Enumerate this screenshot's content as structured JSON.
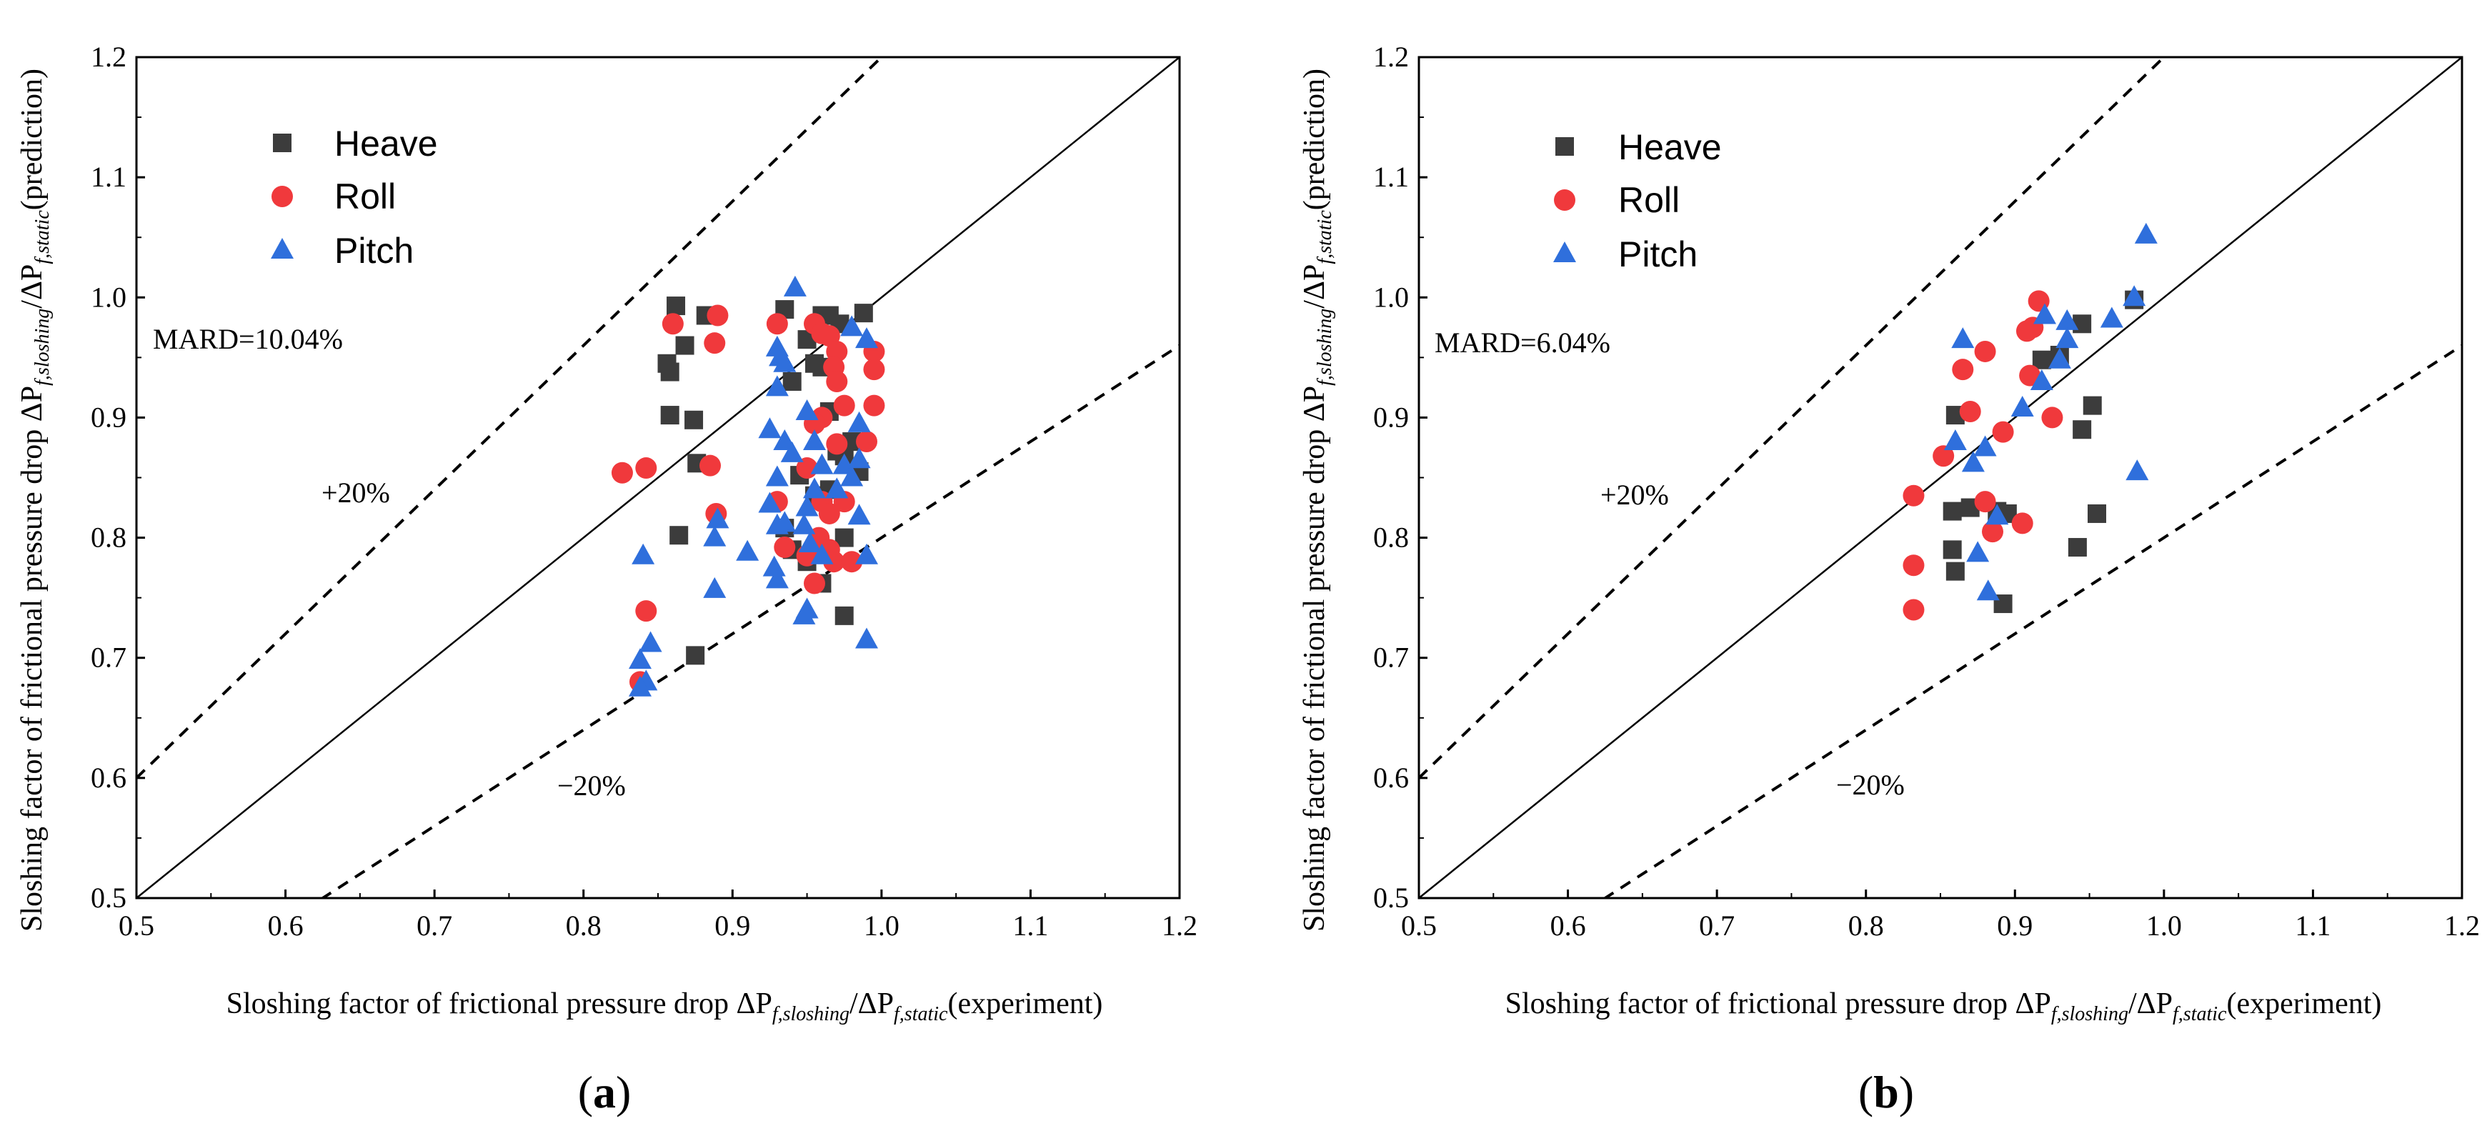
{
  "chart_data": [
    {
      "type": "scatter",
      "panel_label_open": "(",
      "panel_label_letter": "a",
      "panel_label_close": ")",
      "xlabel_main": "Sloshing factor of frictional pressure drop ΔP",
      "xlabel_sub1": "f,sloshing",
      "xlabel_mid": "/ΔP",
      "xlabel_sub2": "f,static",
      "xlabel_end": "(experiment)",
      "ylabel_main": "Sloshing factor of frictional pressure drop ΔP",
      "ylabel_sub1": "f,sloshing",
      "ylabel_mid": "/ΔP",
      "ylabel_sub2": "f,static",
      "ylabel_end": "(prediction)",
      "xlim": [
        0.5,
        1.2
      ],
      "ylim": [
        0.5,
        1.2
      ],
      "xticks": [
        "0.5",
        "0.6",
        "0.7",
        "0.8",
        "0.9",
        "1.0",
        "1.1",
        "1.2"
      ],
      "yticks": [
        "0.5",
        "0.6",
        "0.7",
        "0.8",
        "0.9",
        "1.0",
        "1.1",
        "1.2"
      ],
      "grid": false,
      "legend_position": "top-left",
      "annotations": {
        "mard": "MARD=10.04%",
        "plus": "+20%",
        "minus": "−20%"
      },
      "reference_lines": {
        "parity": 1.0,
        "upper": 1.2,
        "lower": 0.8
      },
      "series": [
        {
          "name": "Heave",
          "marker": "square",
          "color": "#3c3c3c",
          "points": [
            [
              0.862,
              0.993
            ],
            [
              0.882,
              0.985
            ],
            [
              0.868,
              0.96
            ],
            [
              0.856,
              0.945
            ],
            [
              0.858,
              0.938
            ],
            [
              0.858,
              0.902
            ],
            [
              0.874,
              0.898
            ],
            [
              0.876,
              0.862
            ],
            [
              0.864,
              0.802
            ],
            [
              0.875,
              0.702
            ],
            [
              0.935,
              0.99
            ],
            [
              0.96,
              0.985
            ],
            [
              0.965,
              0.985
            ],
            [
              0.972,
              0.978
            ],
            [
              0.988,
              0.987
            ],
            [
              0.95,
              0.965
            ],
            [
              0.955,
              0.945
            ],
            [
              0.96,
              0.942
            ],
            [
              0.94,
              0.93
            ],
            [
              0.965,
              0.905
            ],
            [
              0.97,
              0.872
            ],
            [
              0.975,
              0.868
            ],
            [
              0.945,
              0.852
            ],
            [
              0.955,
              0.835
            ],
            [
              0.965,
              0.84
            ],
            [
              0.975,
              0.8
            ],
            [
              0.935,
              0.808
            ],
            [
              0.94,
              0.79
            ],
            [
              0.96,
              0.762
            ],
            [
              0.975,
              0.735
            ],
            [
              0.95,
              0.78
            ],
            [
              0.985,
              0.855
            ],
            [
              0.98,
              0.88
            ]
          ]
        },
        {
          "name": "Roll",
          "marker": "circle",
          "color": "#f0393c",
          "points": [
            [
              0.826,
              0.854
            ],
            [
              0.842,
              0.858
            ],
            [
              0.86,
              0.978
            ],
            [
              0.89,
              0.985
            ],
            [
              0.888,
              0.962
            ],
            [
              0.885,
              0.86
            ],
            [
              0.889,
              0.82
            ],
            [
              0.842,
              0.739
            ],
            [
              0.838,
              0.68
            ],
            [
              0.93,
              0.978
            ],
            [
              0.955,
              0.978
            ],
            [
              0.96,
              0.97
            ],
            [
              0.965,
              0.968
            ],
            [
              0.97,
              0.955
            ],
            [
              0.995,
              0.955
            ],
            [
              0.968,
              0.942
            ],
            [
              0.97,
              0.93
            ],
            [
              0.96,
              0.9
            ],
            [
              0.995,
              0.94
            ],
            [
              0.975,
              0.91
            ],
            [
              0.995,
              0.91
            ],
            [
              0.99,
              0.88
            ],
            [
              0.955,
              0.895
            ],
            [
              0.95,
              0.858
            ],
            [
              0.97,
              0.878
            ],
            [
              0.96,
              0.83
            ],
            [
              0.965,
              0.82
            ],
            [
              0.975,
              0.83
            ],
            [
              0.93,
              0.83
            ],
            [
              0.935,
              0.792
            ],
            [
              0.958,
              0.8
            ],
            [
              0.965,
              0.79
            ],
            [
              0.968,
              0.78
            ],
            [
              0.98,
              0.78
            ],
            [
              0.955,
              0.762
            ],
            [
              0.95,
              0.785
            ]
          ]
        },
        {
          "name": "Pitch",
          "marker": "triangle",
          "color": "#2f6fdc",
          "points": [
            [
              0.84,
              0.785
            ],
            [
              0.845,
              0.712
            ],
            [
              0.838,
              0.698
            ],
            [
              0.842,
              0.68
            ],
            [
              0.838,
              0.675
            ],
            [
              0.89,
              0.815
            ],
            [
              0.888,
              0.8
            ],
            [
              0.888,
              0.757
            ],
            [
              0.91,
              0.788
            ],
            [
              0.942,
              1.008
            ],
            [
              0.93,
              0.958
            ],
            [
              0.932,
              0.95
            ],
            [
              0.935,
              0.945
            ],
            [
              0.93,
              0.925
            ],
            [
              0.925,
              0.89
            ],
            [
              0.935,
              0.88
            ],
            [
              0.93,
              0.85
            ],
            [
              0.925,
              0.828
            ],
            [
              0.93,
              0.81
            ],
            [
              0.935,
              0.812
            ],
            [
              0.928,
              0.775
            ],
            [
              0.93,
              0.765
            ],
            [
              0.95,
              0.905
            ],
            [
              0.955,
              0.88
            ],
            [
              0.96,
              0.86
            ],
            [
              0.955,
              0.84
            ],
            [
              0.95,
              0.825
            ],
            [
              0.948,
              0.81
            ],
            [
              0.952,
              0.795
            ],
            [
              0.96,
              0.785
            ],
            [
              0.95,
              0.74
            ],
            [
              0.948,
              0.735
            ],
            [
              0.98,
              0.975
            ],
            [
              0.99,
              0.965
            ],
            [
              0.985,
              0.895
            ],
            [
              0.975,
              0.86
            ],
            [
              0.985,
              0.865
            ],
            [
              0.98,
              0.85
            ],
            [
              0.985,
              0.818
            ],
            [
              0.99,
              0.785
            ],
            [
              0.99,
              0.715
            ],
            [
              0.97,
              0.84
            ],
            [
              0.94,
              0.87
            ]
          ]
        }
      ]
    },
    {
      "type": "scatter",
      "panel_label_open": "(",
      "panel_label_letter": "b",
      "panel_label_close": ")",
      "xlabel_main": "Sloshing factor of frictional pressure drop ΔP",
      "xlabel_sub1": "f,sloshing",
      "xlabel_mid": "/ΔP",
      "xlabel_sub2": "f,static",
      "xlabel_end": "(experiment)",
      "ylabel_main": "Sloshing factor of frictional pressure drop ΔP",
      "ylabel_sub1": "f,sloshing",
      "ylabel_mid": "/ΔP",
      "ylabel_sub2": "f,static",
      "ylabel_end": "(prediction)",
      "xlim": [
        0.5,
        1.2
      ],
      "ylim": [
        0.5,
        1.2
      ],
      "xticks": [
        "0.5",
        "0.6",
        "0.7",
        "0.8",
        "0.9",
        "1.0",
        "1.1",
        "1.2"
      ],
      "yticks": [
        "0.5",
        "0.6",
        "0.7",
        "0.8",
        "0.9",
        "1.0",
        "1.1",
        "1.2"
      ],
      "grid": false,
      "legend_position": "top-left",
      "annotations": {
        "mard": "MARD=6.04%",
        "plus": "+20%",
        "minus": "−20%"
      },
      "reference_lines": {
        "parity": 1.0,
        "upper": 1.2,
        "lower": 0.8
      },
      "series": [
        {
          "name": "Heave",
          "marker": "square",
          "color": "#3c3c3c",
          "points": [
            [
              0.98,
              0.998
            ],
            [
              0.945,
              0.978
            ],
            [
              0.918,
              0.948
            ],
            [
              0.93,
              0.952
            ],
            [
              0.86,
              0.902
            ],
            [
              0.952,
              0.91
            ],
            [
              0.945,
              0.89
            ],
            [
              0.858,
              0.822
            ],
            [
              0.87,
              0.825
            ],
            [
              0.888,
              0.822
            ],
            [
              0.895,
              0.82
            ],
            [
              0.955,
              0.82
            ],
            [
              0.86,
              0.772
            ],
            [
              0.858,
              0.79
            ],
            [
              0.942,
              0.792
            ],
            [
              0.892,
              0.745
            ]
          ]
        },
        {
          "name": "Roll",
          "marker": "circle",
          "color": "#f0393c",
          "points": [
            [
              0.916,
              0.997
            ],
            [
              0.912,
              0.975
            ],
            [
              0.908,
              0.972
            ],
            [
              0.88,
              0.955
            ],
            [
              0.865,
              0.94
            ],
            [
              0.91,
              0.935
            ],
            [
              0.852,
              0.868
            ],
            [
              0.87,
              0.905
            ],
            [
              0.892,
              0.888
            ],
            [
              0.925,
              0.9
            ],
            [
              0.832,
              0.835
            ],
            [
              0.88,
              0.83
            ],
            [
              0.885,
              0.805
            ],
            [
              0.905,
              0.812
            ],
            [
              0.832,
              0.777
            ],
            [
              0.832,
              0.74
            ]
          ]
        },
        {
          "name": "Pitch",
          "marker": "triangle",
          "color": "#2f6fdc",
          "points": [
            [
              0.988,
              1.052
            ],
            [
              0.98,
              1.0
            ],
            [
              0.965,
              0.982
            ],
            [
              0.935,
              0.98
            ],
            [
              0.92,
              0.985
            ],
            [
              0.935,
              0.965
            ],
            [
              0.93,
              0.948
            ],
            [
              0.918,
              0.93
            ],
            [
              0.905,
              0.908
            ],
            [
              0.865,
              0.965
            ],
            [
              0.86,
              0.88
            ],
            [
              0.872,
              0.862
            ],
            [
              0.88,
              0.875
            ],
            [
              0.888,
              0.818
            ],
            [
              0.875,
              0.787
            ],
            [
              0.882,
              0.755
            ],
            [
              0.982,
              0.855
            ]
          ]
        }
      ]
    }
  ]
}
